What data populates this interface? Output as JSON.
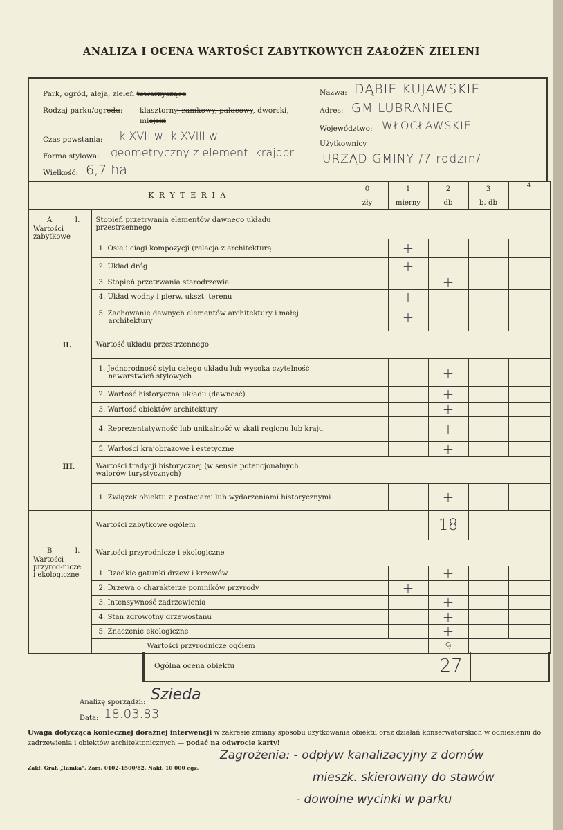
{
  "title": "ANALIZA I OCENA WARTOŚCI ZABYTKOWYCH ZAŁOŻEŃ ZIELENI",
  "info": {
    "park_label_kept": "Park, ogród, aleja, zieleń",
    "park_label_struck": "towarzysząca",
    "rodzaj_label_kept": "Rodzaj parku/ogr",
    "rodzaj_label_struck": "odu",
    "rodzaj_colon": ":",
    "rodzaj_opt_1": "klasztorny",
    "rodzaj_opt_struck": ", zamkowy, pałacowy",
    "rodzaj_opt_2": ", dworski,",
    "rodzaj_opt_3_kept": "mi",
    "rodzaj_opt_3_struck": "ejski",
    "czas_label": "Czas powstania:",
    "czas_value": "k XVII w; k XVIII w",
    "forma_label": "Forma stylowa:",
    "forma_value": "geometryczny z element. krajobr.",
    "wielkosc_label": "Wielkość:",
    "wielkosc_value": "6,7 ha",
    "nazwa_label": "Nazwa:",
    "nazwa_value": "DĄBIE KUJAWSKIE",
    "adres_label": "Adres:",
    "adres_value": "GM LUBRANIEC",
    "woj_label": "Województwo:",
    "woj_value": "WŁOCŁAWSKIE",
    "uzytk_label": "Użytkownicy",
    "uzytk_value": "URZĄD GMINY /7 rodzin/"
  },
  "criteria": {
    "header": "K R Y T E R I A",
    "scores": [
      {
        "n": "0",
        "label": "zły"
      },
      {
        "n": "1",
        "label": "mierny"
      },
      {
        "n": "2",
        "label": "db"
      },
      {
        "n": "3",
        "label": "b. db"
      },
      {
        "n": "4",
        "label": ""
      }
    ],
    "mark_symbol": "+",
    "section_a": {
      "letter": "A",
      "name": "Wartości zabytkowe",
      "groups": [
        {
          "roman": "I.",
          "title": "Stopień przetrwania elementów dawnego układu przestrzennego",
          "items": [
            {
              "label": "1. Osie i ciagi kompozycji (relacja z architekturą",
              "score": 1
            },
            {
              "label": "2. Układ dróg",
              "score": 1
            },
            {
              "label": "3. Stopień przetrwania starodrzewia",
              "score": 2
            },
            {
              "label": "4. Układ wodny i pierw. ukszt. terenu",
              "score": 1
            },
            {
              "label": "5. Zachowanie dawnych elementów architektury i małej architektury",
              "score": 1
            }
          ]
        },
        {
          "roman": "II.",
          "title": "Wartość układu przestrzennego",
          "items": [
            {
              "label": "1. Jednorodność stylu całego układu lub wysoka czytelność nawarstwień stylowych",
              "score": 2
            },
            {
              "label": "2. Wartość historyczna układu (dawność)",
              "score": 2
            },
            {
              "label": "3. Wartość obiektów architektury",
              "score": 2
            },
            {
              "label": "4. Reprezentatywność lub unikalność w skali regionu lub kraju",
              "score": 2
            },
            {
              "label": "5. Wartości krajobrazowe i estetyczne",
              "score": 2
            }
          ]
        },
        {
          "roman": "III.",
          "title": "Wartości tradycji historycznej (w sensie potencjonalnych walorów turystycznych)",
          "items": [
            {
              "label": "1. Związek obiektu z postaciami lub wydarzeniami historycznymi",
              "score": 2
            }
          ]
        }
      ],
      "total_label": "Wartości zabytkowe ogółem",
      "total_value": "18"
    },
    "section_b": {
      "letter": "B",
      "roman": "I.",
      "name": "Wartości przyrod-nicze i ekologiczne",
      "title": "Wartości przyrodnicze i ekologiczne",
      "items": [
        {
          "label": "1. Rzadkie gatunki drzew i krzewów",
          "score": 2
        },
        {
          "label": "2. Drzewa o charakterze pomników przyrody",
          "score": 1
        },
        {
          "label": "3. Intensywność zadrzewienia",
          "score": 2
        },
        {
          "label": "4. Stan zdrowotny drzewostanu",
          "score": 2
        },
        {
          "label": "5. Znaczenie ekologiczne",
          "score": 2
        }
      ],
      "total_label": "Wartości przyrodnicze ogółem",
      "total_value": "9"
    },
    "overall_label": "Ogólna ocena obiektu",
    "overall_value": "27"
  },
  "footer": {
    "analiza_label": "Analizę sporządził:",
    "analiza_signature": "Szieda",
    "data_label": "Data:",
    "data_value": "18.03.83",
    "uwaga_bold_1": "Uwaga dotycząca koniecznej doraźnej interwencji",
    "uwaga_1": " w zakresie zmiany sposobu użytkowania obiektu oraz działań konserwatorskich w odniesieniu do zadrzewienia i obiektów architektonicznych — ",
    "uwaga_bold_2": "podać na odwrocie karty!",
    "print_info": "Zakł. Graf. „Tamka\". Zam. 0102-1500/82. Nakł. 10 000 egz.",
    "note_1": "Zagrożenia: - odpływ kanalizacyjny z domów",
    "note_2": "mieszk. skierowany do stawów",
    "note_3": "- dowolne wycinki w parku"
  }
}
